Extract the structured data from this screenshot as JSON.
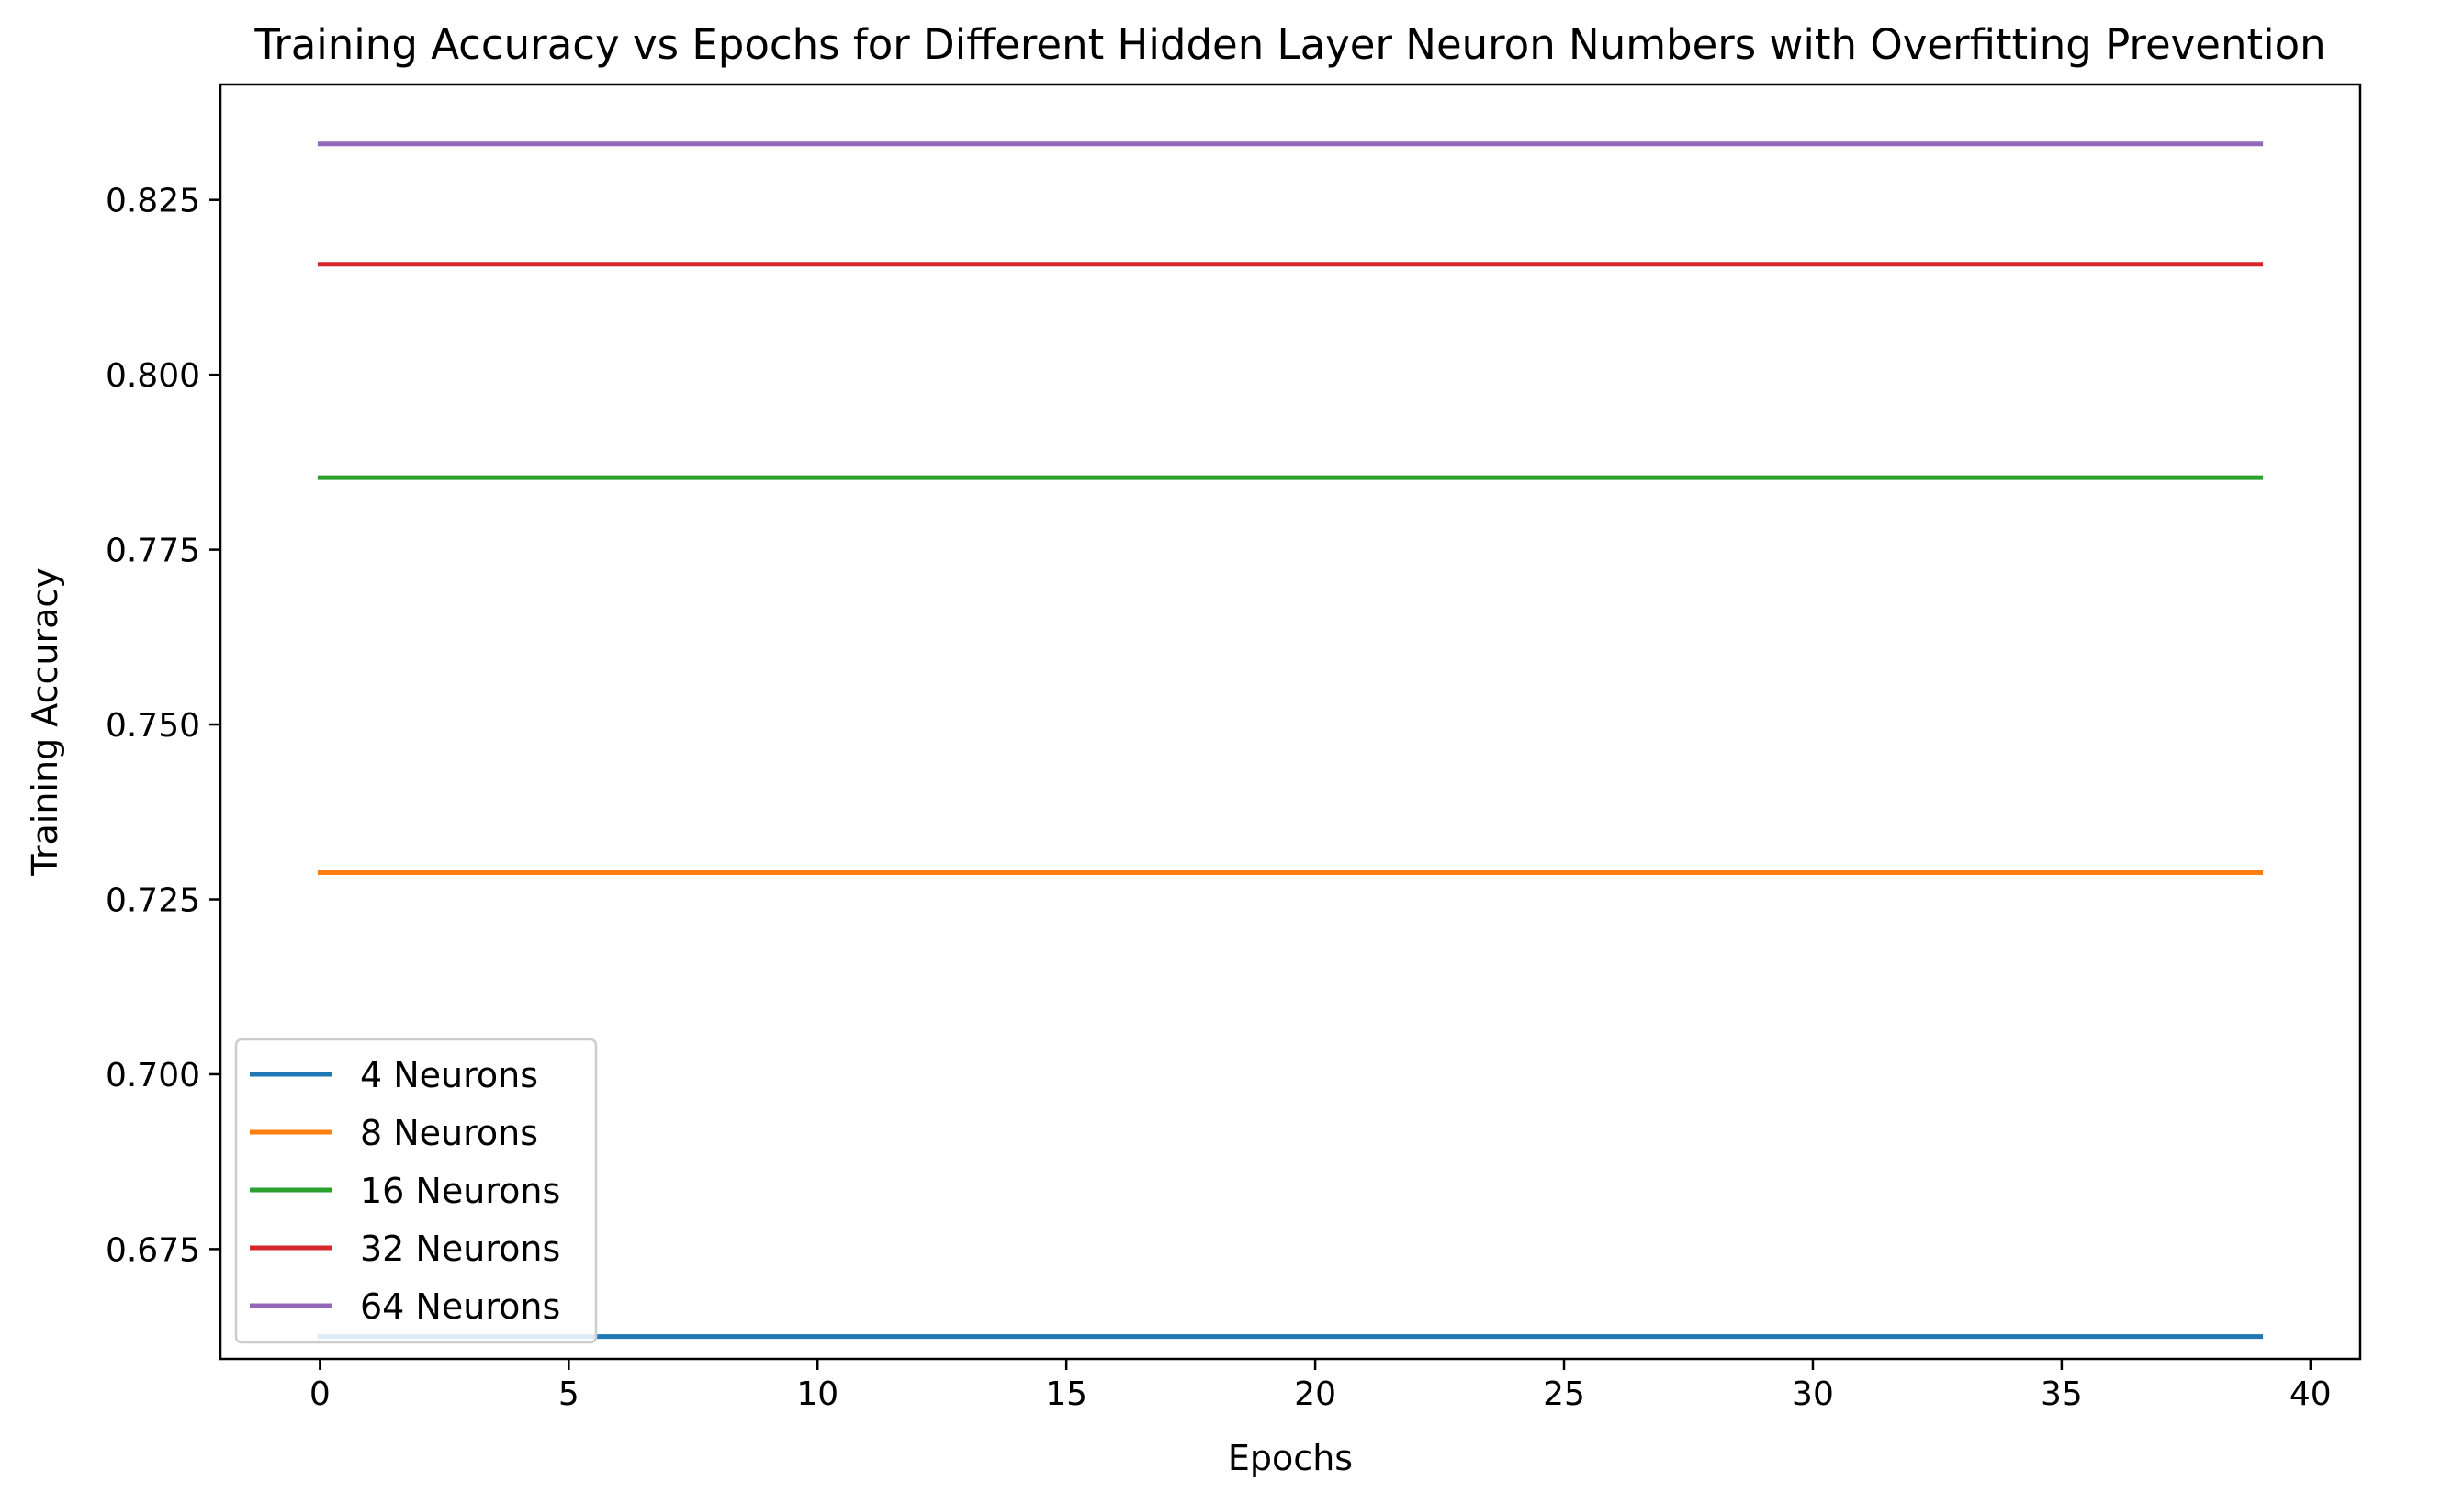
{
  "chart_data": {
    "type": "line",
    "title": "Training Accuracy vs Epochs for Different Hidden Layer Neuron Numbers with Overfitting Prevention",
    "xlabel": "Epochs",
    "ylabel": "Training Accuracy",
    "xlim": [
      -2,
      41
    ],
    "ylim": [
      0.6593,
      0.8415
    ],
    "x_ticks": [
      0,
      5,
      10,
      15,
      20,
      25,
      30,
      35,
      40
    ],
    "y_ticks": [
      0.675,
      0.7,
      0.725,
      0.75,
      0.775,
      0.8,
      0.825
    ],
    "y_tick_labels": [
      "0.675",
      "0.700",
      "0.725",
      "0.750",
      "0.775",
      "0.800",
      "0.825"
    ],
    "x_range": [
      0,
      39
    ],
    "grid": false,
    "legend_position": "lower-left",
    "series": [
      {
        "name": "4 Neurons",
        "color": "#1f77b4",
        "x": [
          0,
          39
        ],
        "values": [
          0.6625,
          0.6625
        ]
      },
      {
        "name": "8 Neurons",
        "color": "#ff7f0e",
        "x": [
          0,
          39
        ],
        "values": [
          0.7288,
          0.7288
        ]
      },
      {
        "name": "16 Neurons",
        "color": "#2ca02c",
        "x": [
          0,
          39
        ],
        "values": [
          0.7853,
          0.7853
        ]
      },
      {
        "name": "32 Neurons",
        "color": "#d62728",
        "x": [
          0,
          39
        ],
        "values": [
          0.8158,
          0.8158
        ]
      },
      {
        "name": "64 Neurons",
        "color": "#9467bd",
        "x": [
          0,
          39
        ],
        "values": [
          0.833,
          0.833
        ]
      }
    ]
  }
}
